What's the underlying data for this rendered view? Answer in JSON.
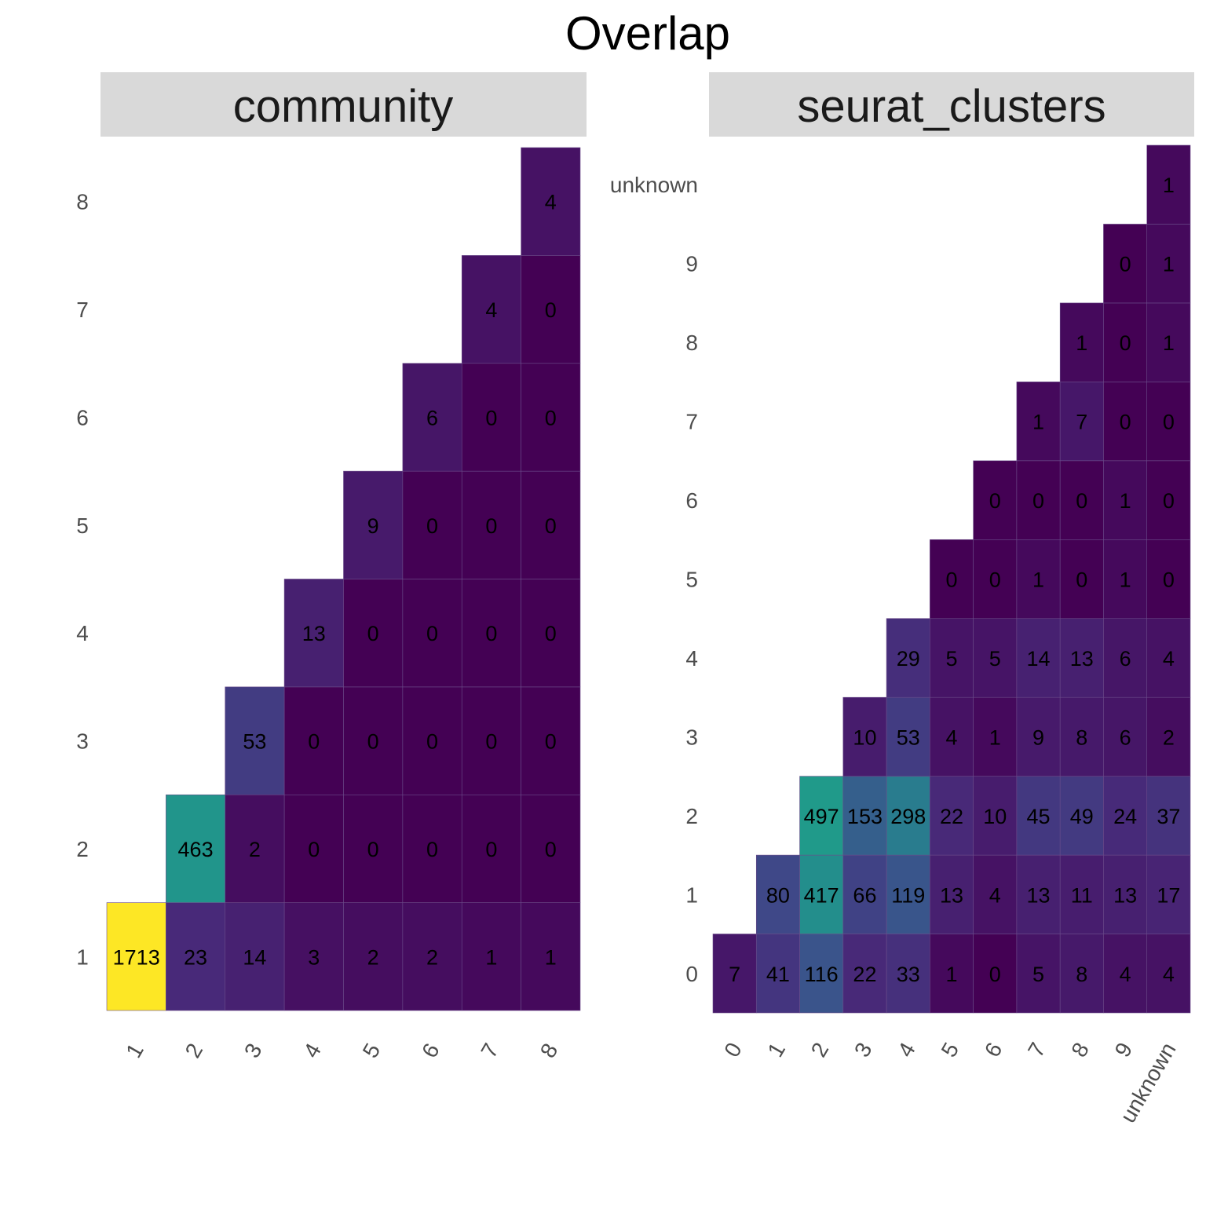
{
  "title": "Overlap",
  "chart_data": [
    {
      "type": "heatmap",
      "facet": "community",
      "categories": [
        "1",
        "2",
        "3",
        "4",
        "5",
        "6",
        "7",
        "8"
      ],
      "cells": [
        {
          "x": "1",
          "y": "1",
          "v": 1713
        },
        {
          "x": "2",
          "y": "1",
          "v": 23
        },
        {
          "x": "3",
          "y": "1",
          "v": 14
        },
        {
          "x": "4",
          "y": "1",
          "v": 3
        },
        {
          "x": "5",
          "y": "1",
          "v": 2
        },
        {
          "x": "6",
          "y": "1",
          "v": 2
        },
        {
          "x": "7",
          "y": "1",
          "v": 1
        },
        {
          "x": "8",
          "y": "1",
          "v": 1
        },
        {
          "x": "2",
          "y": "2",
          "v": 463
        },
        {
          "x": "3",
          "y": "2",
          "v": 2
        },
        {
          "x": "4",
          "y": "2",
          "v": 0
        },
        {
          "x": "5",
          "y": "2",
          "v": 0
        },
        {
          "x": "6",
          "y": "2",
          "v": 0
        },
        {
          "x": "7",
          "y": "2",
          "v": 0
        },
        {
          "x": "8",
          "y": "2",
          "v": 0
        },
        {
          "x": "3",
          "y": "3",
          "v": 53
        },
        {
          "x": "4",
          "y": "3",
          "v": 0
        },
        {
          "x": "5",
          "y": "3",
          "v": 0
        },
        {
          "x": "6",
          "y": "3",
          "v": 0
        },
        {
          "x": "7",
          "y": "3",
          "v": 0
        },
        {
          "x": "8",
          "y": "3",
          "v": 0
        },
        {
          "x": "4",
          "y": "4",
          "v": 13
        },
        {
          "x": "5",
          "y": "4",
          "v": 0
        },
        {
          "x": "6",
          "y": "4",
          "v": 0
        },
        {
          "x": "7",
          "y": "4",
          "v": 0
        },
        {
          "x": "8",
          "y": "4",
          "v": 0
        },
        {
          "x": "5",
          "y": "5",
          "v": 9
        },
        {
          "x": "6",
          "y": "5",
          "v": 0
        },
        {
          "x": "7",
          "y": "5",
          "v": 0
        },
        {
          "x": "8",
          "y": "5",
          "v": 0
        },
        {
          "x": "6",
          "y": "6",
          "v": 6
        },
        {
          "x": "7",
          "y": "6",
          "v": 0
        },
        {
          "x": "8",
          "y": "6",
          "v": 0
        },
        {
          "x": "7",
          "y": "7",
          "v": 4
        },
        {
          "x": "8",
          "y": "7",
          "v": 0
        },
        {
          "x": "8",
          "y": "8",
          "v": 4
        }
      ]
    },
    {
      "type": "heatmap",
      "facet": "seurat_clusters",
      "categories": [
        "0",
        "1",
        "2",
        "3",
        "4",
        "5",
        "6",
        "7",
        "8",
        "9",
        "unknown"
      ],
      "cells": [
        {
          "x": "0",
          "y": "0",
          "v": 7
        },
        {
          "x": "1",
          "y": "0",
          "v": 41
        },
        {
          "x": "2",
          "y": "0",
          "v": 116
        },
        {
          "x": "3",
          "y": "0",
          "v": 22
        },
        {
          "x": "4",
          "y": "0",
          "v": 33
        },
        {
          "x": "5",
          "y": "0",
          "v": 1
        },
        {
          "x": "6",
          "y": "0",
          "v": 0
        },
        {
          "x": "7",
          "y": "0",
          "v": 5
        },
        {
          "x": "8",
          "y": "0",
          "v": 8
        },
        {
          "x": "9",
          "y": "0",
          "v": 4
        },
        {
          "x": "unknown",
          "y": "0",
          "v": 4
        },
        {
          "x": "1",
          "y": "1",
          "v": 80
        },
        {
          "x": "2",
          "y": "1",
          "v": 417
        },
        {
          "x": "3",
          "y": "1",
          "v": 66
        },
        {
          "x": "4",
          "y": "1",
          "v": 119
        },
        {
          "x": "5",
          "y": "1",
          "v": 13
        },
        {
          "x": "6",
          "y": "1",
          "v": 4
        },
        {
          "x": "7",
          "y": "1",
          "v": 13
        },
        {
          "x": "8",
          "y": "1",
          "v": 11
        },
        {
          "x": "9",
          "y": "1",
          "v": 13
        },
        {
          "x": "unknown",
          "y": "1",
          "v": 17
        },
        {
          "x": "2",
          "y": "2",
          "v": 497
        },
        {
          "x": "3",
          "y": "2",
          "v": 153
        },
        {
          "x": "4",
          "y": "2",
          "v": 298
        },
        {
          "x": "5",
          "y": "2",
          "v": 22
        },
        {
          "x": "6",
          "y": "2",
          "v": 10
        },
        {
          "x": "7",
          "y": "2",
          "v": 45
        },
        {
          "x": "8",
          "y": "2",
          "v": 49
        },
        {
          "x": "9",
          "y": "2",
          "v": 24
        },
        {
          "x": "unknown",
          "y": "2",
          "v": 37
        },
        {
          "x": "3",
          "y": "3",
          "v": 10
        },
        {
          "x": "4",
          "y": "3",
          "v": 53
        },
        {
          "x": "5",
          "y": "3",
          "v": 4
        },
        {
          "x": "6",
          "y": "3",
          "v": 1
        },
        {
          "x": "7",
          "y": "3",
          "v": 9
        },
        {
          "x": "8",
          "y": "3",
          "v": 8
        },
        {
          "x": "9",
          "y": "3",
          "v": 6
        },
        {
          "x": "unknown",
          "y": "3",
          "v": 2
        },
        {
          "x": "4",
          "y": "4",
          "v": 29
        },
        {
          "x": "5",
          "y": "4",
          "v": 5
        },
        {
          "x": "6",
          "y": "4",
          "v": 5
        },
        {
          "x": "7",
          "y": "4",
          "v": 14
        },
        {
          "x": "8",
          "y": "4",
          "v": 13
        },
        {
          "x": "9",
          "y": "4",
          "v": 6
        },
        {
          "x": "unknown",
          "y": "4",
          "v": 4
        },
        {
          "x": "5",
          "y": "5",
          "v": 0
        },
        {
          "x": "6",
          "y": "5",
          "v": 0
        },
        {
          "x": "7",
          "y": "5",
          "v": 1
        },
        {
          "x": "8",
          "y": "5",
          "v": 0
        },
        {
          "x": "9",
          "y": "5",
          "v": 1
        },
        {
          "x": "unknown",
          "y": "5",
          "v": 0
        },
        {
          "x": "6",
          "y": "6",
          "v": 0
        },
        {
          "x": "7",
          "y": "6",
          "v": 0
        },
        {
          "x": "8",
          "y": "6",
          "v": 0
        },
        {
          "x": "9",
          "y": "6",
          "v": 1
        },
        {
          "x": "unknown",
          "y": "6",
          "v": 0
        },
        {
          "x": "7",
          "y": "7",
          "v": 1
        },
        {
          "x": "8",
          "y": "7",
          "v": 7
        },
        {
          "x": "9",
          "y": "7",
          "v": 0
        },
        {
          "x": "unknown",
          "y": "7",
          "v": 0
        },
        {
          "x": "8",
          "y": "8",
          "v": 1
        },
        {
          "x": "9",
          "y": "8",
          "v": 0
        },
        {
          "x": "unknown",
          "y": "8",
          "v": 1
        },
        {
          "x": "9",
          "y": "9",
          "v": 0
        },
        {
          "x": "unknown",
          "y": "9",
          "v": 1
        },
        {
          "x": "unknown",
          "y": "unknown",
          "v": 1
        }
      ]
    }
  ],
  "colors": {
    "scale": "viridis",
    "scale_max": 1713,
    "strip_background": "#d9d9d9",
    "grid_line": "#6b4c8a"
  }
}
